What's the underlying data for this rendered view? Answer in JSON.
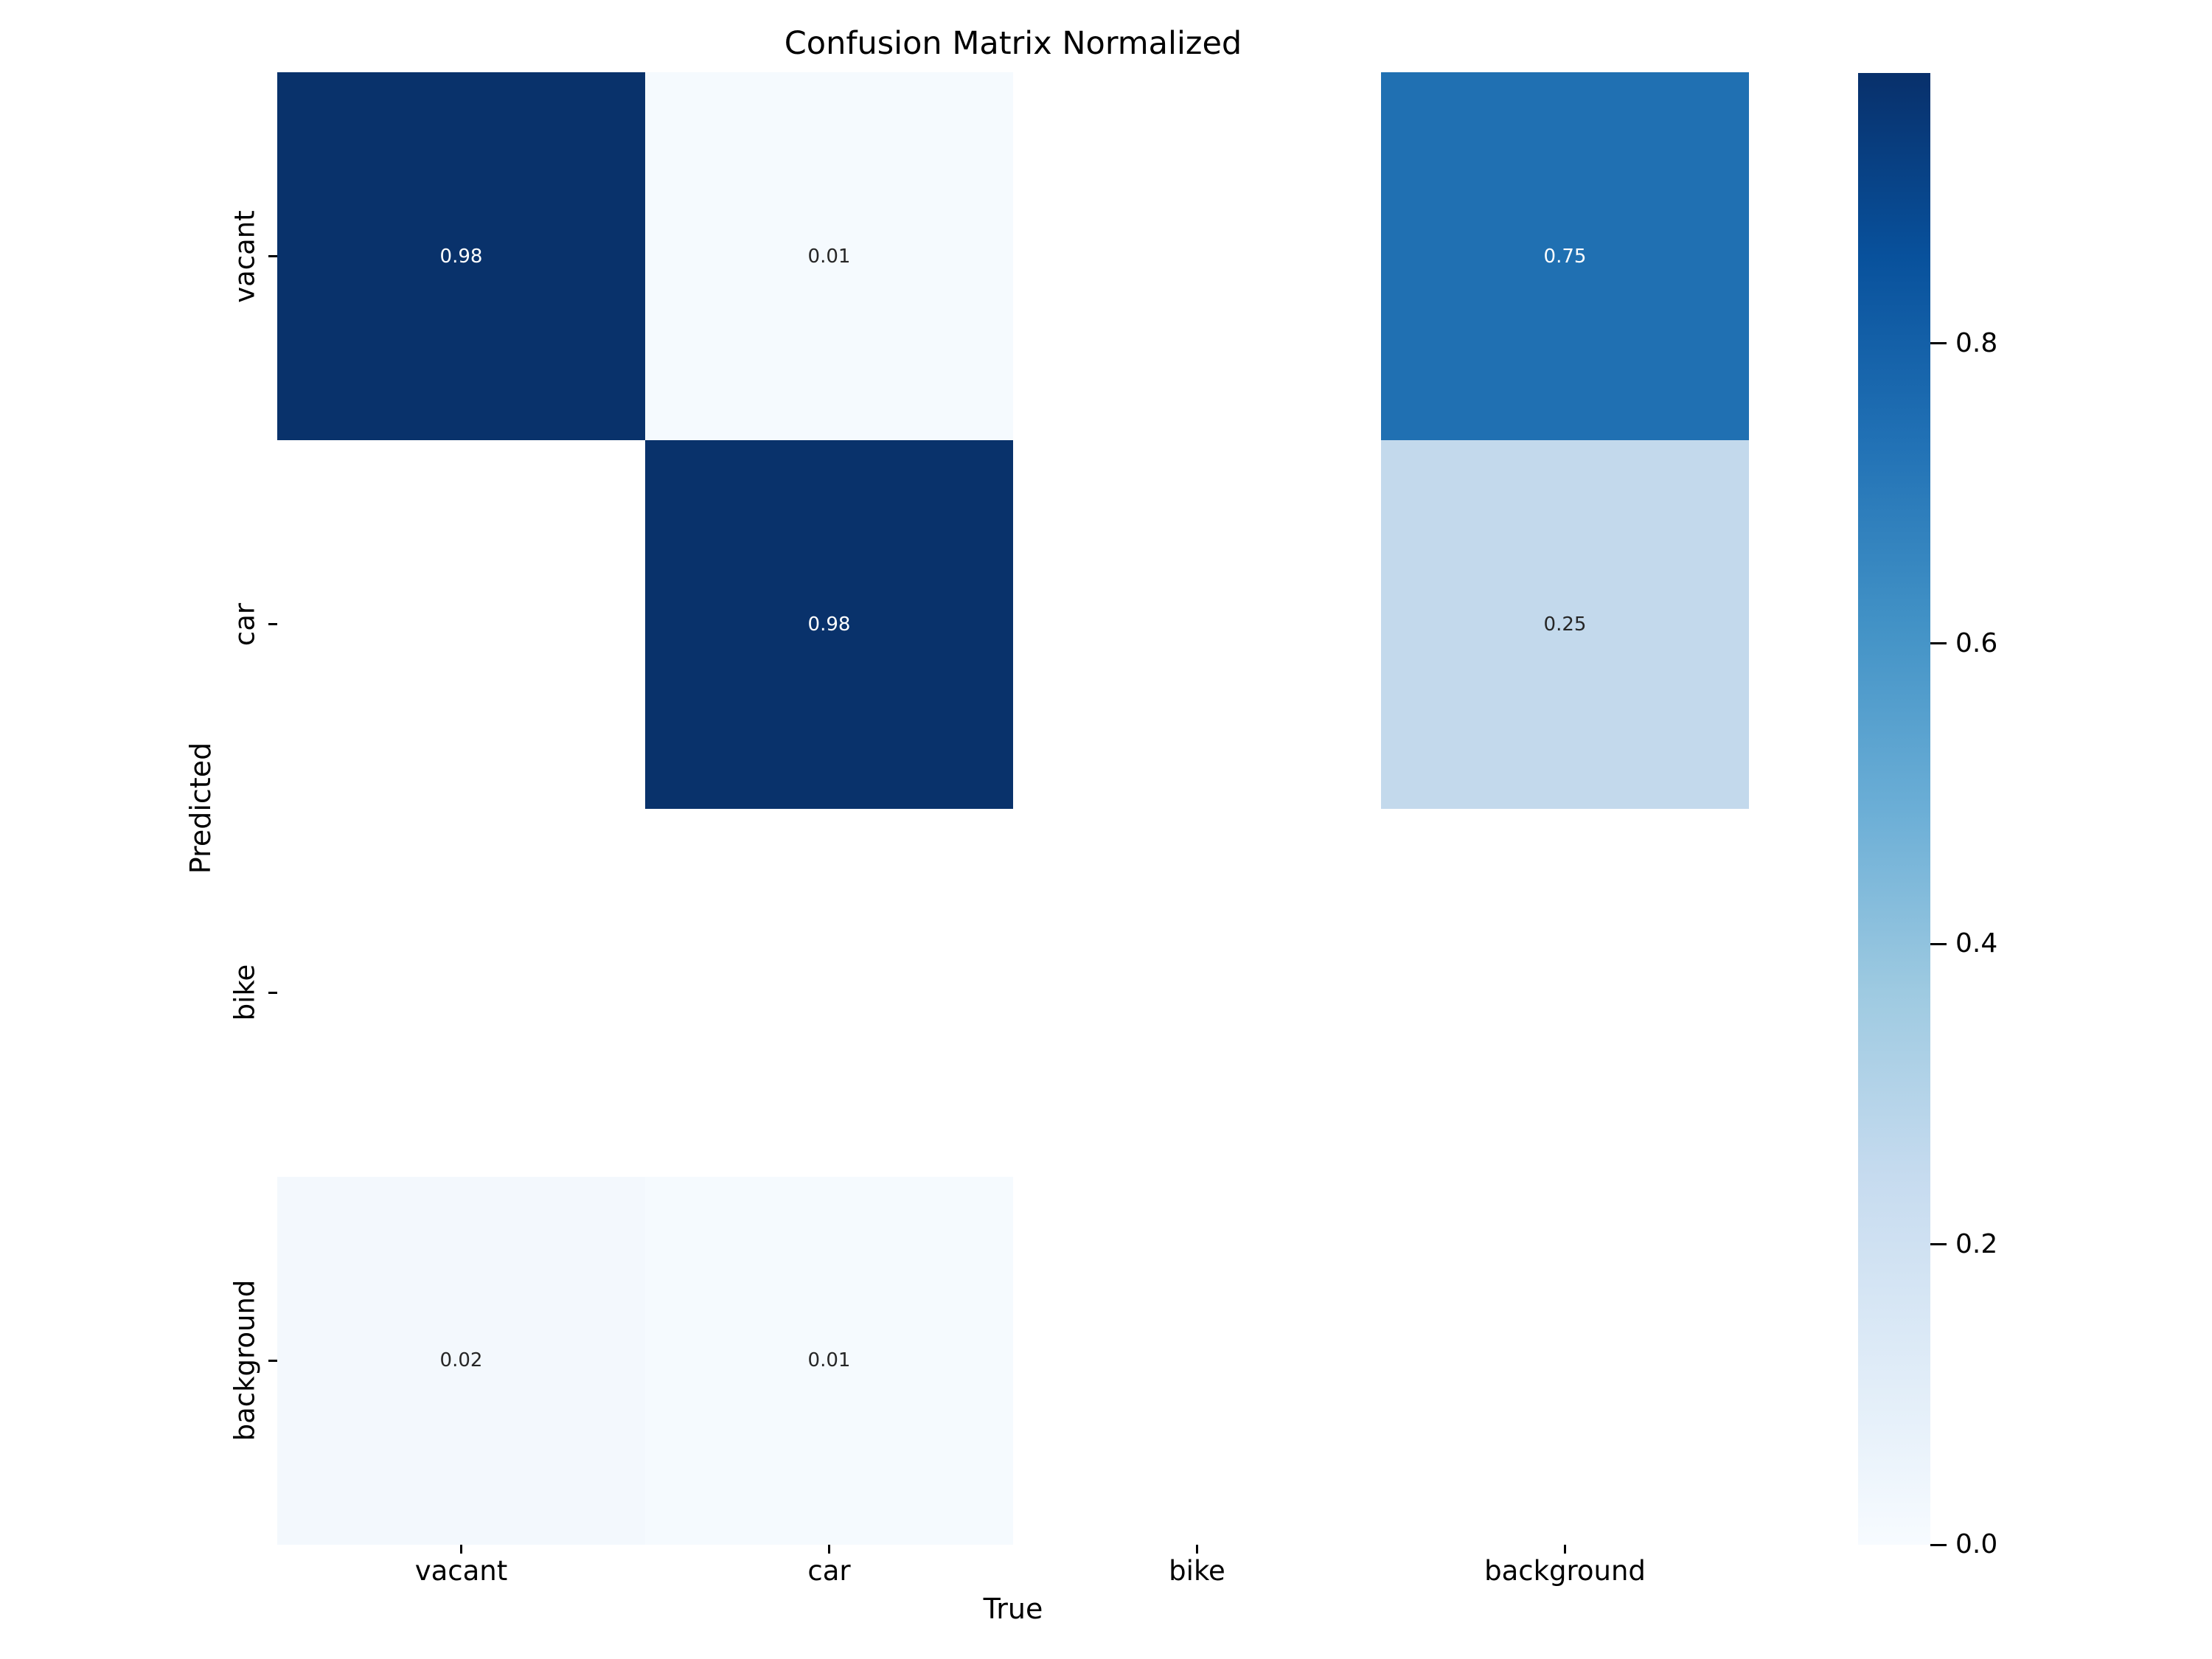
{
  "title": "Confusion Matrix Normalized",
  "axes": {
    "x_label": "True",
    "y_label": "Predicted",
    "x_tick_labels": [
      "vacant",
      "car",
      "bike",
      "background"
    ],
    "y_tick_labels": [
      "vacant",
      "car",
      "bike",
      "background"
    ]
  },
  "colorbar": {
    "colormap": "Blues",
    "tick_labels": [
      "0.8",
      "0.6",
      "0.4",
      "0.2",
      "0.0"
    ],
    "tick_values": [
      0.8,
      0.6,
      0.4,
      0.2,
      0.0
    ],
    "vmin": 0.0,
    "vmax": 0.98,
    "gradient_top_to_bottom": [
      "#08306b",
      "#08519c",
      "#2171b5",
      "#4292c6",
      "#6baed6",
      "#9ecae1",
      "#c6dbef",
      "#deebf7",
      "#f7fbff"
    ]
  },
  "chart_data": {
    "type": "heatmap",
    "title": "Confusion Matrix Normalized",
    "xlabel": "True",
    "ylabel": "Predicted",
    "x_categories": [
      "vacant",
      "car",
      "bike",
      "background"
    ],
    "y_categories": [
      "vacant",
      "car",
      "bike",
      "background"
    ],
    "matrix": [
      [
        0.98,
        0.01,
        null,
        0.75
      ],
      [
        null,
        0.98,
        null,
        0.25
      ],
      [
        null,
        null,
        null,
        null
      ],
      [
        0.02,
        0.01,
        null,
        null
      ]
    ],
    "cell_labels": [
      [
        "0.98",
        "0.01",
        "",
        "0.75"
      ],
      [
        "",
        "0.98",
        "",
        "0.25"
      ],
      [
        "",
        "",
        "",
        ""
      ],
      [
        "0.02",
        "0.01",
        "",
        ""
      ]
    ],
    "cell_colors": [
      [
        "#09326b",
        "#f5fafe",
        null,
        "#2070b2"
      ],
      [
        null,
        "#09326b",
        null,
        "#c3d9ec"
      ],
      [
        null,
        null,
        null,
        null
      ],
      [
        "#f3f8fd",
        "#f5fafe",
        null,
        null
      ]
    ],
    "cell_text_colors": [
      [
        "#ffffff",
        "#262626",
        null,
        "#ffffff"
      ],
      [
        null,
        "#ffffff",
        null,
        "#262626"
      ],
      [
        null,
        null,
        null,
        null
      ],
      [
        "#262626",
        "#262626",
        null,
        null
      ]
    ],
    "vmin": 0.0,
    "vmax": 0.98,
    "grid": false,
    "legend_position": "right-colorbar"
  }
}
